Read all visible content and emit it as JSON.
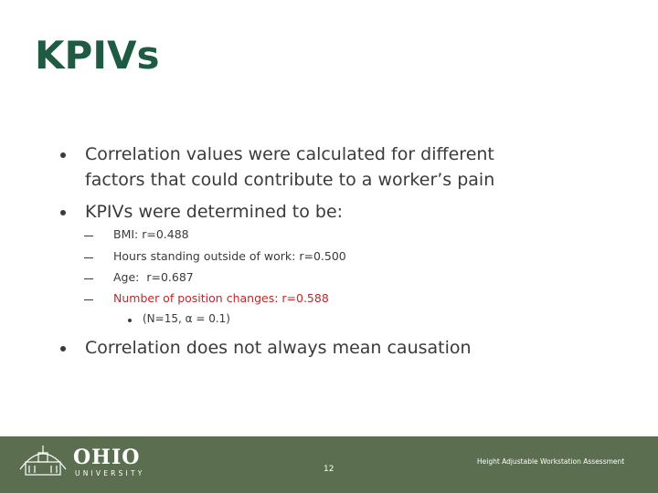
{
  "slide": {
    "title": "KPIVs",
    "bullets": [
      {
        "text": "Correlation values were calculated for different factors that could contribute to a worker’s pain"
      },
      {
        "text": "KPIVs were determined to be:",
        "subitems": [
          "BMI: r=0.488",
          "Hours standing outside of work: r=0.500",
          "Age:  r=0.687",
          "Number of position changes: r=0.588"
        ],
        "note": "(N=15, α = 0.1)"
      },
      {
        "text": "Correlation does not always mean causation"
      }
    ]
  },
  "footer": {
    "logo_name": "OHIO",
    "logo_sub": "UNIVERSITY",
    "page_number": "12",
    "caption": "Height Adjustable Workstation Assessment"
  }
}
